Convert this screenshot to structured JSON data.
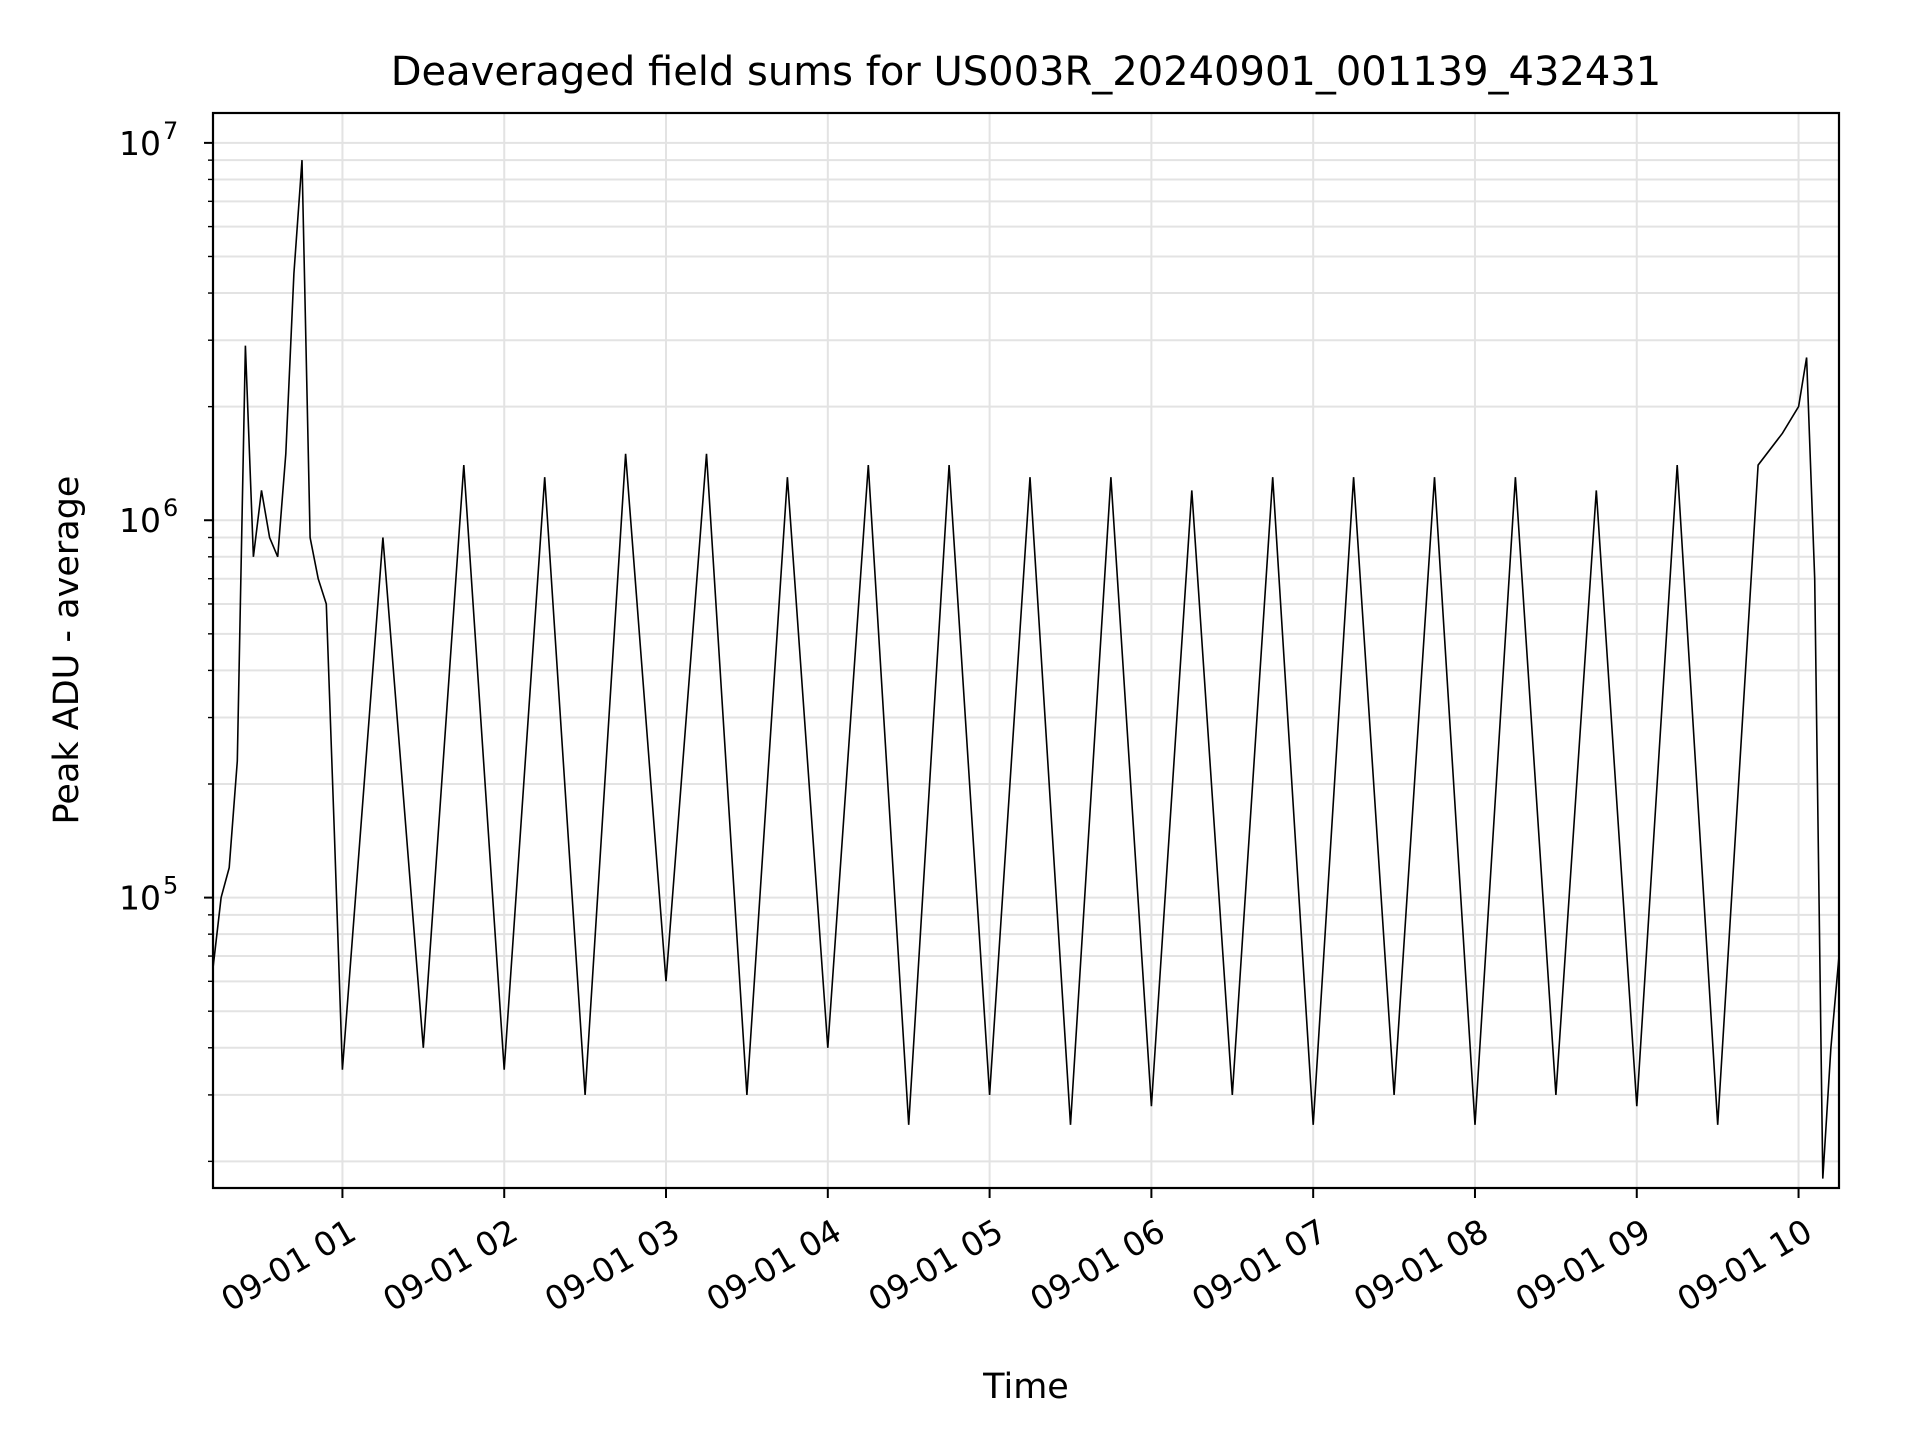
{
  "chart_data": {
    "type": "line",
    "title": "Deaveraged field sums for US003R_20240901_001139_432431",
    "xlabel": "Time",
    "ylabel": "Peak ADU - average",
    "y_scale": "log",
    "ylim": [
      17000,
      12000000
    ],
    "xlim": [
      "2024-09-01 00:12",
      "2024-09-01 10:15"
    ],
    "grid": true,
    "line_color": "#000000",
    "x_ticks": [
      {
        "label": "09-01 01",
        "time": "2024-09-01 01:00"
      },
      {
        "label": "09-01 02",
        "time": "2024-09-01 02:00"
      },
      {
        "label": "09-01 03",
        "time": "2024-09-01 03:00"
      },
      {
        "label": "09-01 04",
        "time": "2024-09-01 04:00"
      },
      {
        "label": "09-01 05",
        "time": "2024-09-01 05:00"
      },
      {
        "label": "09-01 06",
        "time": "2024-09-01 06:00"
      },
      {
        "label": "09-01 07",
        "time": "2024-09-01 07:00"
      },
      {
        "label": "09-01 08",
        "time": "2024-09-01 08:00"
      },
      {
        "label": "09-01 09",
        "time": "2024-09-01 09:00"
      },
      {
        "label": "09-01 10",
        "time": "2024-09-01 10:00"
      }
    ],
    "y_ticks": [
      {
        "base": "10",
        "exp": "5",
        "value": 100000
      },
      {
        "base": "10",
        "exp": "6",
        "value": 1000000
      },
      {
        "base": "10",
        "exp": "7",
        "value": 10000000
      }
    ],
    "series": [
      {
        "x": [
          "2024-09-01 00:12",
          "2024-09-01 00:15",
          "2024-09-01 00:18",
          "2024-09-01 00:21",
          "2024-09-01 00:24",
          "2024-09-01 00:27",
          "2024-09-01 00:30",
          "2024-09-01 00:33",
          "2024-09-01 00:36",
          "2024-09-01 00:39",
          "2024-09-01 00:42",
          "2024-09-01 00:45",
          "2024-09-01 00:48",
          "2024-09-01 00:51",
          "2024-09-01 00:54",
          "2024-09-01 00:57",
          "2024-09-01 01:00",
          "2024-09-01 01:15",
          "2024-09-01 01:30",
          "2024-09-01 01:45",
          "2024-09-01 02:00",
          "2024-09-01 02:15",
          "2024-09-01 02:30",
          "2024-09-01 02:45",
          "2024-09-01 03:00",
          "2024-09-01 03:15",
          "2024-09-01 03:30",
          "2024-09-01 03:45",
          "2024-09-01 04:00",
          "2024-09-01 04:15",
          "2024-09-01 04:30",
          "2024-09-01 04:45",
          "2024-09-01 05:00",
          "2024-09-01 05:15",
          "2024-09-01 05:30",
          "2024-09-01 05:45",
          "2024-09-01 06:00",
          "2024-09-01 06:15",
          "2024-09-01 06:30",
          "2024-09-01 06:45",
          "2024-09-01 07:00",
          "2024-09-01 07:15",
          "2024-09-01 07:30",
          "2024-09-01 07:45",
          "2024-09-01 08:00",
          "2024-09-01 08:15",
          "2024-09-01 08:30",
          "2024-09-01 08:45",
          "2024-09-01 09:00",
          "2024-09-01 09:15",
          "2024-09-01 09:30",
          "2024-09-01 09:45",
          "2024-09-01 09:54",
          "2024-09-01 10:00",
          "2024-09-01 10:03",
          "2024-09-01 10:06",
          "2024-09-01 10:09",
          "2024-09-01 10:12",
          "2024-09-01 10:15"
        ],
        "y": [
          65000,
          100000,
          120000,
          230000,
          2900000,
          800000,
          1200000,
          900000,
          800000,
          1500000,
          4500000,
          9000000,
          900000,
          700000,
          600000,
          150000,
          35000,
          900000,
          40000,
          1400000,
          35000,
          1300000,
          30000,
          1500000,
          60000,
          1500000,
          30000,
          1300000,
          40000,
          1400000,
          25000,
          1400000,
          30000,
          1300000,
          25000,
          1300000,
          28000,
          1200000,
          30000,
          1300000,
          25000,
          1300000,
          30000,
          1300000,
          25000,
          1300000,
          30000,
          1200000,
          28000,
          1400000,
          25000,
          1400000,
          1700000,
          2000000,
          2700000,
          700000,
          18000,
          40000,
          70000
        ]
      }
    ]
  }
}
